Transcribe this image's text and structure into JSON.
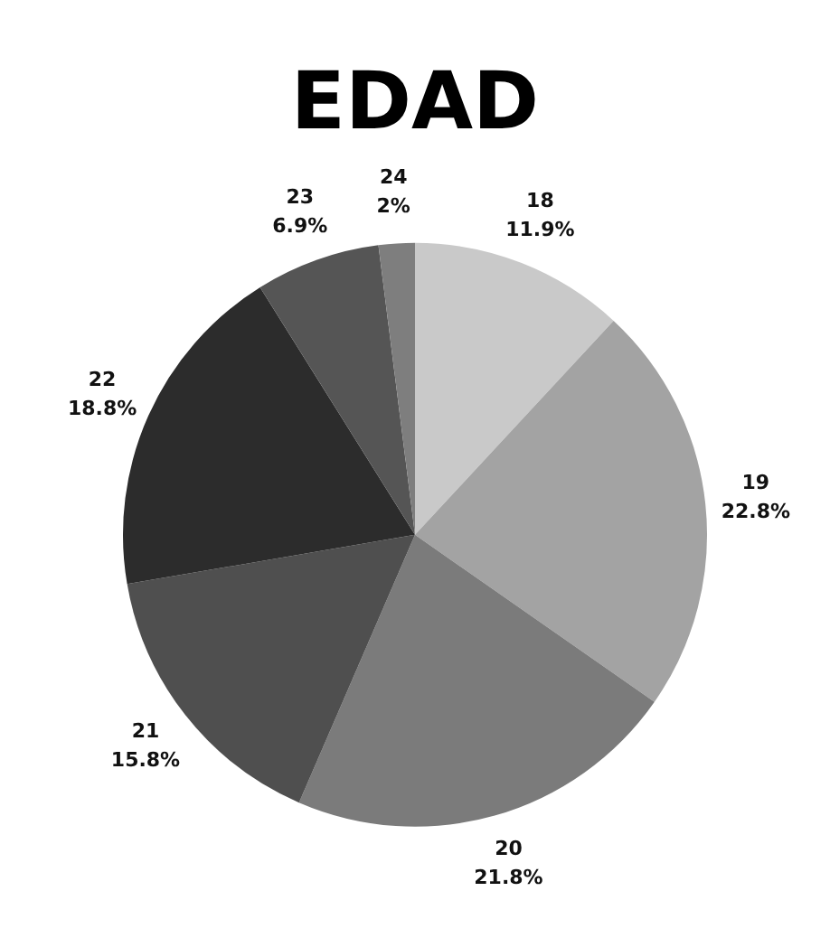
{
  "chart_data": {
    "type": "pie",
    "title": "EDAD",
    "categories": [
      "18",
      "19",
      "20",
      "21",
      "22",
      "23",
      "24"
    ],
    "values": [
      11.9,
      22.8,
      21.8,
      15.8,
      18.8,
      6.9,
      2
    ],
    "value_labels": [
      "11.9%",
      "22.8%",
      "21.8%",
      "15.8%",
      "18.8%",
      "6.9%",
      "2%"
    ],
    "colors": [
      "#c9c9c9",
      "#a3a3a3",
      "#7b7b7b",
      "#4f4f4f",
      "#2c2c2c",
      "#555555",
      "#7e7e7e"
    ],
    "legend": false
  }
}
